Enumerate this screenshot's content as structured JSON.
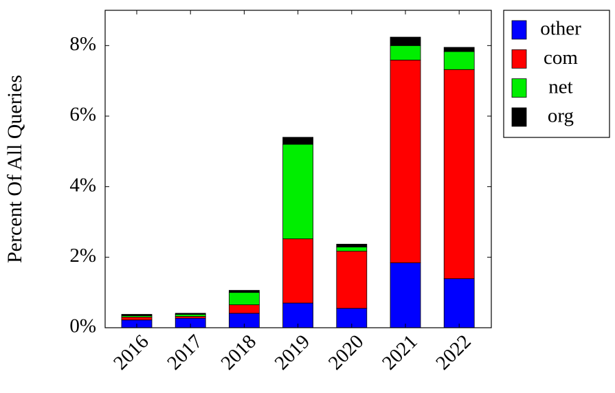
{
  "chart_data": {
    "type": "bar",
    "stacked": true,
    "y_label": "Percent Of All Queries",
    "categories": [
      "2016",
      "2017",
      "2018",
      "2019",
      "2020",
      "2021",
      "2022"
    ],
    "series": [
      {
        "name": "other",
        "color": "#0000ff",
        "values": [
          0.22,
          0.27,
          0.41,
          0.7,
          0.55,
          1.84,
          1.39
        ]
      },
      {
        "name": "com",
        "color": "#ff0000",
        "values": [
          0.08,
          0.05,
          0.24,
          1.82,
          1.62,
          5.75,
          5.93
        ]
      },
      {
        "name": "net",
        "color": "#00ee00",
        "values": [
          0.04,
          0.06,
          0.35,
          2.68,
          0.12,
          0.41,
          0.51
        ]
      },
      {
        "name": "org",
        "color": "#000000",
        "values": [
          0.04,
          0.03,
          0.06,
          0.2,
          0.08,
          0.24,
          0.12
        ]
      }
    ],
    "ylim": [
      0,
      9
    ],
    "yticks": [
      {
        "value": 0,
        "label": "0%"
      },
      {
        "value": 2,
        "label": "2%"
      },
      {
        "value": 4,
        "label": "4%"
      },
      {
        "value": 6,
        "label": "6%"
      },
      {
        "value": 8,
        "label": "8%"
      }
    ],
    "grid": false,
    "legend": "outside-right"
  }
}
